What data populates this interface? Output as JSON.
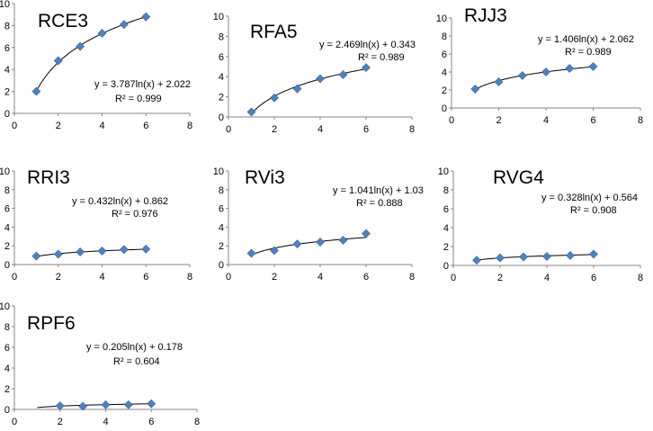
{
  "chart_data": [
    {
      "type": "scatter",
      "title": "RCE3",
      "x": [
        1,
        2,
        3,
        4,
        5,
        6
      ],
      "y": [
        2.0,
        4.8,
        6.1,
        7.3,
        8.1,
        8.8
      ],
      "trendline": {
        "type": "logarithmic",
        "a": 3.787,
        "b": 2.022
      },
      "equation": "y = 3.787ln(x) + 2.022",
      "r2": "R² = 0.999",
      "xlim": [
        0,
        8
      ],
      "ylim": [
        0,
        10
      ],
      "xticks": [
        0,
        2,
        4,
        6,
        8
      ],
      "yticks": [
        0,
        2,
        4,
        6,
        8,
        10
      ],
      "marker_color": "#4F81BD"
    },
    {
      "type": "scatter",
      "title": "RFA5",
      "x": [
        1,
        2,
        3,
        4,
        5,
        6
      ],
      "y": [
        0.5,
        1.9,
        2.8,
        3.8,
        4.2,
        4.9
      ],
      "trendline": {
        "type": "logarithmic",
        "a": 2.469,
        "b": 0.343
      },
      "equation": "y = 2.469ln(x) + 0.343",
      "r2": "R² = 0.989",
      "xlim": [
        0,
        8
      ],
      "ylim": [
        0,
        10
      ],
      "xticks": [
        0,
        2,
        4,
        6,
        8
      ],
      "yticks": [
        0,
        2,
        4,
        6,
        8,
        10
      ],
      "marker_color": "#4F81BD"
    },
    {
      "type": "scatter",
      "title": "RJJ3",
      "x": [
        1,
        2,
        3,
        4,
        5,
        6
      ],
      "y": [
        2.1,
        2.9,
        3.6,
        4.0,
        4.4,
        4.6
      ],
      "trendline": {
        "type": "logarithmic",
        "a": 1.406,
        "b": 2.062
      },
      "equation": "y = 1.406ln(x) + 2.062",
      "r2": "R² = 0.989",
      "xlim": [
        0,
        8
      ],
      "ylim": [
        0,
        10
      ],
      "xticks": [
        0,
        2,
        4,
        6,
        8
      ],
      "yticks": [
        0,
        2,
        4,
        6,
        8,
        10
      ],
      "marker_color": "#4F81BD"
    },
    {
      "type": "scatter",
      "title": "RRI3",
      "x": [
        1,
        2,
        3,
        4,
        5,
        6
      ],
      "y": [
        0.9,
        1.1,
        1.35,
        1.45,
        1.6,
        1.65
      ],
      "trendline": {
        "type": "logarithmic",
        "a": 0.432,
        "b": 0.862
      },
      "equation": "y = 0.432ln(x) + 0.862",
      "r2": "R² = 0.976",
      "xlim": [
        0,
        8
      ],
      "ylim": [
        0,
        10
      ],
      "xticks": [
        0,
        2,
        4,
        6,
        8
      ],
      "yticks": [
        0,
        2,
        4,
        6,
        8,
        10
      ],
      "marker_color": "#4F81BD"
    },
    {
      "type": "scatter",
      "title": "RVi3",
      "x": [
        1,
        2,
        3,
        4,
        5,
        6
      ],
      "y": [
        1.2,
        1.5,
        2.2,
        2.4,
        2.6,
        3.3
      ],
      "trendline": {
        "type": "logarithmic",
        "a": 1.041,
        "b": 1.03
      },
      "equation": "y = 1.041ln(x) + 1.03",
      "r2": "R² = 0.888",
      "xlim": [
        0,
        8
      ],
      "ylim": [
        0,
        10
      ],
      "xticks": [
        0,
        2,
        4,
        6,
        8
      ],
      "yticks": [
        0,
        2,
        4,
        6,
        8,
        10
      ],
      "marker_color": "#4F81BD"
    },
    {
      "type": "scatter",
      "title": "RVG4",
      "x": [
        1,
        2,
        3,
        4,
        5,
        6
      ],
      "y": [
        0.55,
        0.8,
        0.9,
        0.95,
        1.05,
        1.2
      ],
      "trendline": {
        "type": "logarithmic",
        "a": 0.328,
        "b": 0.564
      },
      "equation": "y = 0.328ln(x) + 0.564",
      "r2": "R² = 0.908",
      "xlim": [
        0,
        8
      ],
      "ylim": [
        0,
        10
      ],
      "xticks": [
        0,
        2,
        4,
        6,
        8
      ],
      "yticks": [
        0,
        2,
        4,
        6,
        8,
        10
      ],
      "marker_color": "#4F81BD"
    },
    {
      "type": "scatter",
      "title": "RPF6",
      "x": [
        2,
        3,
        4,
        5,
        6
      ],
      "y": [
        0.35,
        0.3,
        0.45,
        0.45,
        0.55
      ],
      "trendline": {
        "type": "logarithmic",
        "a": 0.205,
        "b": 0.178
      },
      "equation": "y = 0.205ln(x) + 0.178",
      "r2": "R² = 0.604",
      "xlim": [
        0,
        8
      ],
      "ylim": [
        0,
        10
      ],
      "xticks": [
        0,
        2,
        4,
        6,
        8
      ],
      "yticks": [
        0,
        2,
        4,
        6,
        8,
        10
      ],
      "marker_color": "#4F81BD"
    }
  ]
}
